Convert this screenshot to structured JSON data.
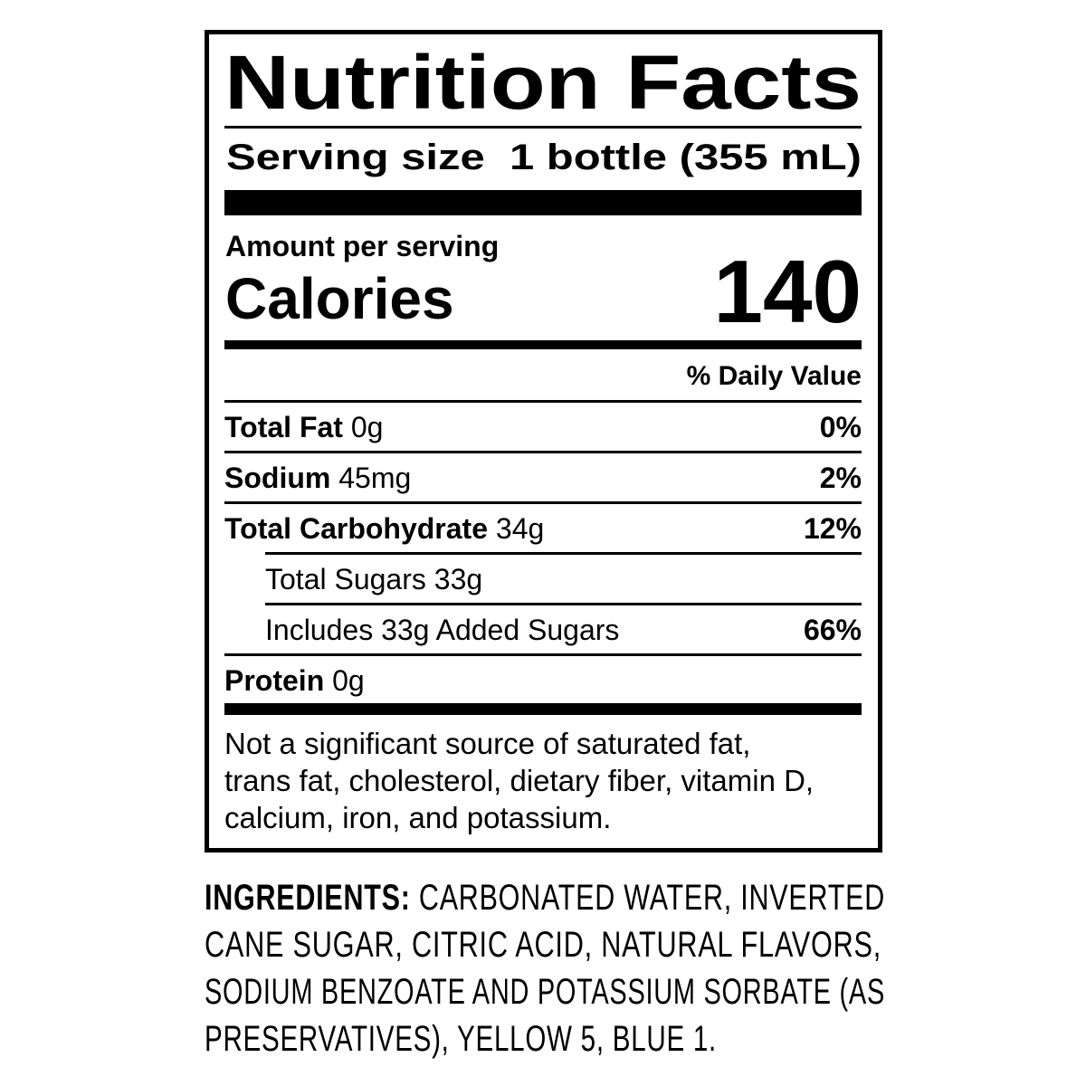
{
  "label": {
    "title": "Nutrition Facts",
    "serving_size_label": "Serving size",
    "serving_size_value": "1 bottle (355 mL)",
    "amount_per_serving": "Amount per serving",
    "calories_label": "Calories",
    "calories_value": "140",
    "daily_value_header": "% Daily Value",
    "rows": [
      {
        "name": "Total Fat",
        "amount": "0g",
        "dv": "0%"
      },
      {
        "name": "Sodium",
        "amount": "45mg",
        "dv": "2%"
      },
      {
        "name": "Total Carbohydrate",
        "amount": "34g",
        "dv": "12%"
      },
      {
        "name": "Total Sugars 33g",
        "amount": "",
        "dv": ""
      },
      {
        "name": "Includes 33g Added Sugars",
        "amount": "",
        "dv": "66%"
      },
      {
        "name": "Protein",
        "amount": "0g",
        "dv": ""
      }
    ],
    "footnote_lines": [
      "Not a significant source of saturated fat,",
      "trans fat, cholesterol, dietary fiber, vitamin D,",
      "calcium, iron, and potassium."
    ]
  },
  "ingredients": {
    "label": "INGREDIENTS:",
    "lines": [
      " CARBONATED WATER, INVERTED",
      "CANE SUGAR, CITRIC ACID, NATURAL FLAVORS,",
      "SODIUM BENZOATE AND POTASSIUM SORBATE (AS",
      "PRESERVATIVES), YELLOW 5, BLUE 1."
    ]
  }
}
